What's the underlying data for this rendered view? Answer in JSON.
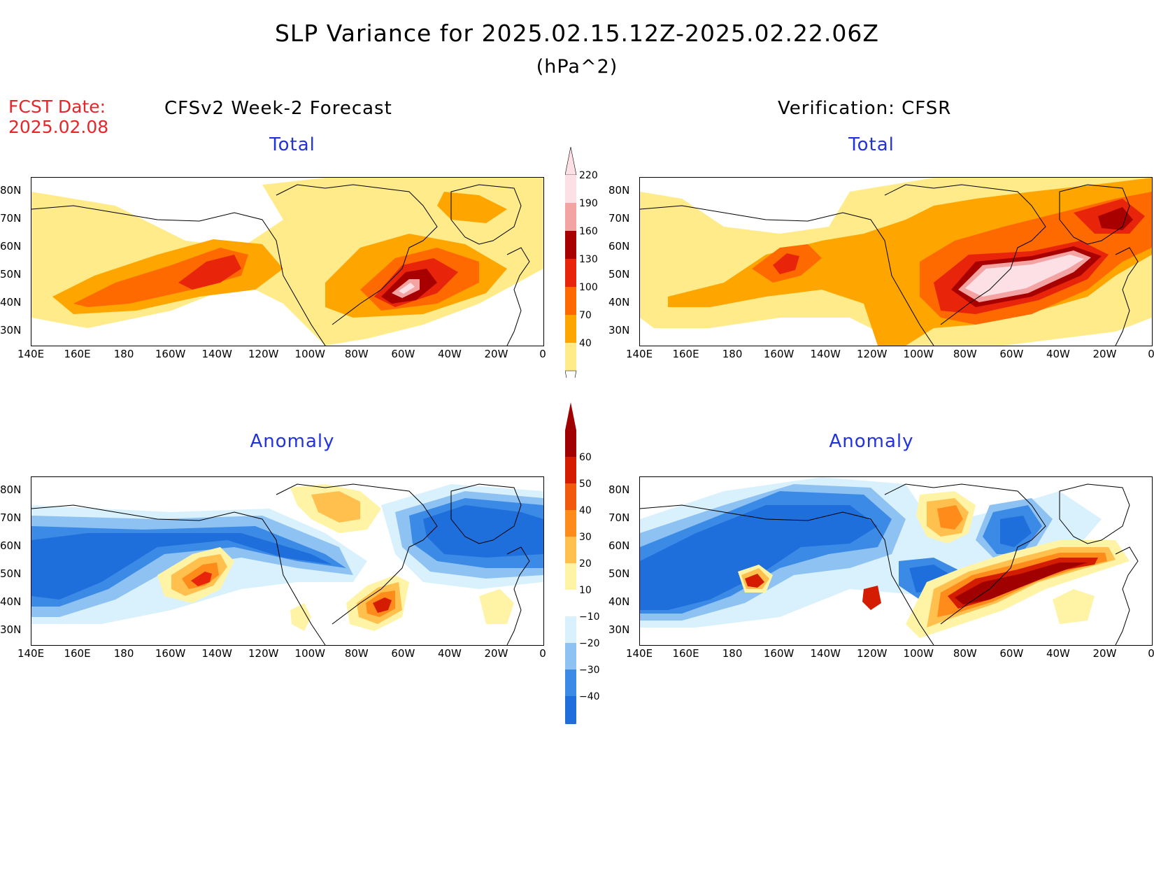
{
  "header": {
    "title": "SLP Variance for 2025.02.15.12Z-2025.02.22.06Z",
    "units": "(hPa^2)",
    "fcst_date_label": "FCST Date:",
    "fcst_date_value": "2025.02.08"
  },
  "columns": {
    "left": "CFSv2 Week-2 Forecast",
    "right": "Verification: CFSR"
  },
  "panels": {
    "total_left_title": "Total",
    "total_right_title": "Total",
    "anom_left_title": "Anomaly",
    "anom_right_title": "Anomaly"
  },
  "axes": {
    "lat_labels": [
      "80N",
      "70N",
      "60N",
      "50N",
      "40N",
      "30N"
    ],
    "lon_labels": [
      "140E",
      "160E",
      "180",
      "160W",
      "140W",
      "120W",
      "100W",
      "80W",
      "60W",
      "40W",
      "20W",
      "0"
    ]
  },
  "colorbars": {
    "total": {
      "labels": [
        "40",
        "70",
        "100",
        "130",
        "160",
        "190",
        "220"
      ],
      "colors": [
        "#ffeb8a",
        "#ffa500",
        "#ff6a00",
        "#e8240a",
        "#a80000",
        "#f4a3a3",
        "#fde0e6"
      ]
    },
    "anomaly": {
      "labels": [
        "-40",
        "-30",
        "-20",
        "-10",
        "10",
        "20",
        "30",
        "40",
        "50",
        "60"
      ],
      "colors": [
        "#1e6fdb",
        "#3b8ae6",
        "#8ec2f2",
        "#d9f1fd",
        "#ffffff",
        "#fff3a6",
        "#ffc04d",
        "#ff8c1a",
        "#f05a0a",
        "#d41c00",
        "#a00000"
      ]
    }
  }
}
